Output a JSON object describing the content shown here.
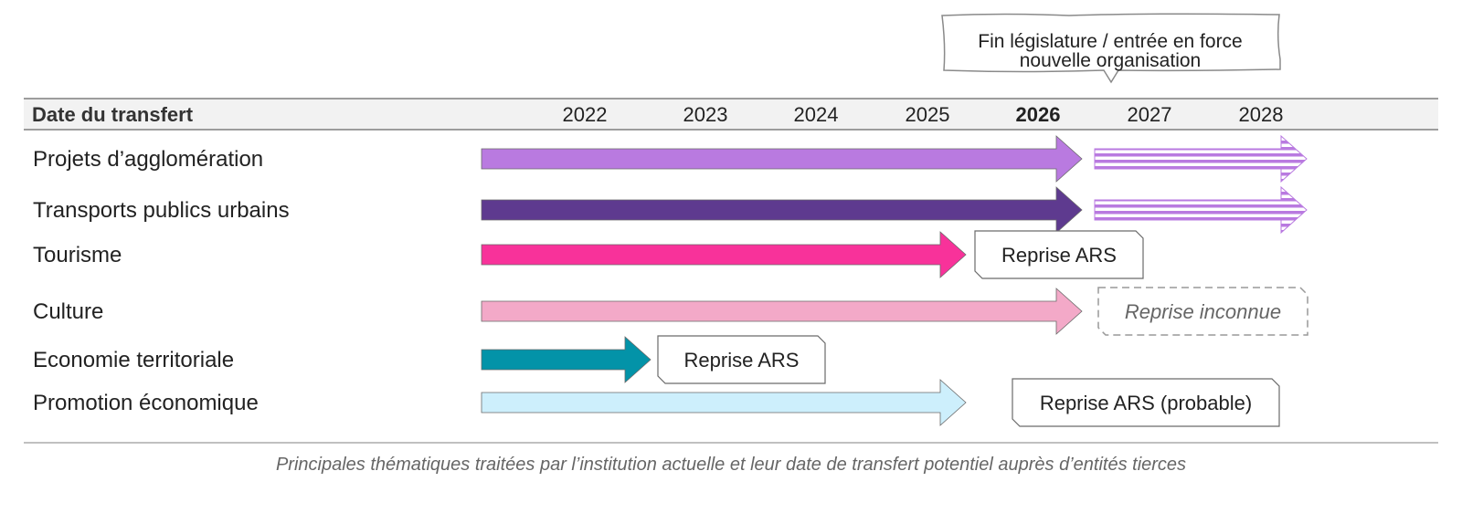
{
  "callout": {
    "line1": "Fin législature / entrée en force",
    "line2": "nouvelle organisation"
  },
  "header": {
    "label": "Date du transfert",
    "years": [
      "2022",
      "2023",
      "2024",
      "2025",
      "2026",
      "2027",
      "2028"
    ],
    "highlight_year": "2026"
  },
  "rows": [
    {
      "label": "Projets d’agglomération",
      "color": "#b97ae0",
      "end": "2026",
      "continuation": "2028"
    },
    {
      "label": "Transports publics urbains",
      "color": "#5e3a8f",
      "end": "2026",
      "continuation": "2028"
    },
    {
      "label": "Tourisme",
      "color": "#f8329a",
      "end": "2025",
      "note": "Reprise ARS",
      "note_style": "solid"
    },
    {
      "label": "Culture",
      "color": "#f3a9c8",
      "end": "2026",
      "note": "Reprise inconnue",
      "note_style": "dashed"
    },
    {
      "label": "Economie territoriale",
      "color": "#0393a8",
      "end": "2022",
      "note": "Reprise ARS",
      "note_style": "solid"
    },
    {
      "label": "Promotion économique",
      "color": "#cdeffc",
      "end": "2025",
      "note": "Reprise ARS (probable)",
      "note_style": "solid"
    }
  ],
  "caption": "Principales thématiques traitées par l’institution actuelle et leur date de transfert potentiel auprès d’entités tierces"
}
